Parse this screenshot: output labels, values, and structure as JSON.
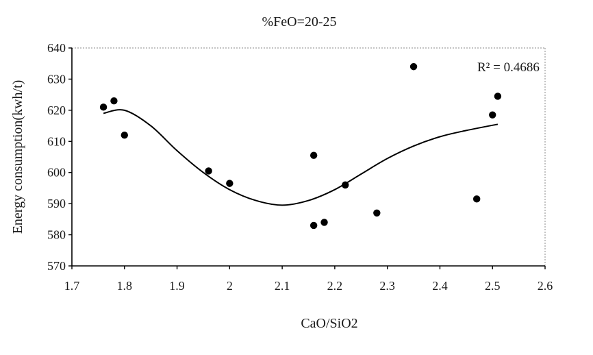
{
  "chart_data": {
    "type": "scatter",
    "title": "%FeO=20-25",
    "xlabel": "CaO/SiO2",
    "ylabel": "Energy consumption(kwh/t)",
    "xlim": [
      1.7,
      2.6
    ],
    "ylim": [
      570,
      640
    ],
    "x_ticks": [
      "1.7",
      "1.8",
      "1.9",
      "2",
      "2.1",
      "2.2",
      "2.3",
      "2.4",
      "2.5",
      "2.6"
    ],
    "y_ticks": [
      "570",
      "580",
      "590",
      "600",
      "610",
      "620",
      "630",
      "640"
    ],
    "grid": false,
    "annotation": "R² = 0.4686",
    "series": [
      {
        "marker": "circle",
        "color": "#000000",
        "points": [
          {
            "x": 1.76,
            "y": 621
          },
          {
            "x": 1.78,
            "y": 623
          },
          {
            "x": 1.8,
            "y": 612
          },
          {
            "x": 1.96,
            "y": 600.5
          },
          {
            "x": 2.0,
            "y": 596.5
          },
          {
            "x": 2.16,
            "y": 605.5
          },
          {
            "x": 2.16,
            "y": 583
          },
          {
            "x": 2.18,
            "y": 584
          },
          {
            "x": 2.22,
            "y": 596
          },
          {
            "x": 2.28,
            "y": 587
          },
          {
            "x": 2.35,
            "y": 634
          },
          {
            "x": 2.47,
            "y": 591.5
          },
          {
            "x": 2.5,
            "y": 618.5
          },
          {
            "x": 2.51,
            "y": 624.5
          }
        ]
      }
    ],
    "trendline": {
      "type": "polynomial",
      "color": "#000000",
      "points": [
        {
          "x": 1.76,
          "y": 619
        },
        {
          "x": 1.8,
          "y": 620
        },
        {
          "x": 1.85,
          "y": 615
        },
        {
          "x": 1.9,
          "y": 607
        },
        {
          "x": 1.95,
          "y": 600
        },
        {
          "x": 2.0,
          "y": 594.5
        },
        {
          "x": 2.05,
          "y": 591
        },
        {
          "x": 2.1,
          "y": 589.5
        },
        {
          "x": 2.15,
          "y": 591
        },
        {
          "x": 2.2,
          "y": 594.5
        },
        {
          "x": 2.25,
          "y": 599.5
        },
        {
          "x": 2.3,
          "y": 604.5
        },
        {
          "x": 2.35,
          "y": 608.5
        },
        {
          "x": 2.4,
          "y": 611.5
        },
        {
          "x": 2.45,
          "y": 613.5
        },
        {
          "x": 2.51,
          "y": 615.5
        }
      ]
    }
  }
}
